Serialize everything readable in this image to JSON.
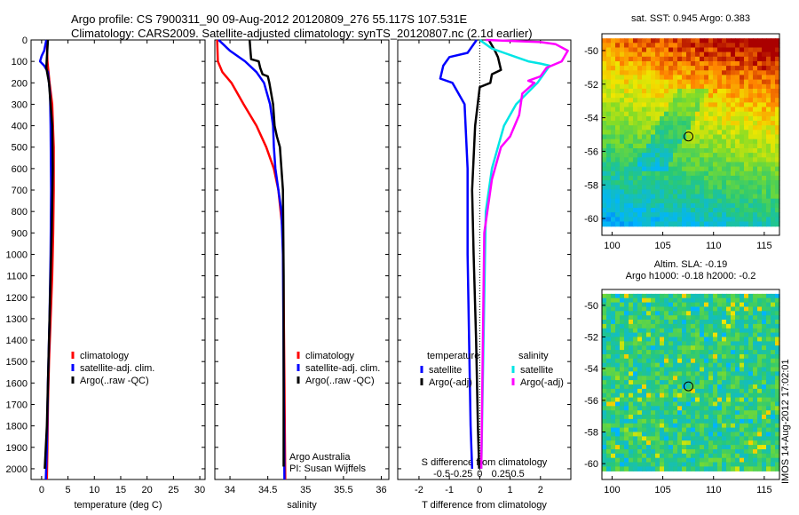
{
  "header": {
    "title_line1": "Argo profile: CS 7900311_90 09-Aug-2012 20120809_276 55.117S 107.531E",
    "title_line2": "Climatology: CARS2009. Satellite-adjusted climatology: synTS_20120807.nc (2.1d earlier)"
  },
  "colors": {
    "climatology": "#ff0000",
    "satellite": "#0000ff",
    "argo": "#000000",
    "sal_satellite": "#00e5e5",
    "sal_argo": "#ff00ff"
  },
  "chart_data": [
    {
      "type": "line",
      "id": "temperature",
      "xlabel": "temperature (deg C)",
      "xlim": [
        -2,
        31
      ],
      "ylim": [
        2050,
        0
      ],
      "xticks": [
        0,
        5,
        10,
        15,
        20,
        25,
        30
      ],
      "yticks": [
        0,
        100,
        200,
        300,
        400,
        500,
        600,
        700,
        800,
        900,
        1000,
        1100,
        1200,
        1300,
        1400,
        1500,
        1600,
        1700,
        1800,
        1900,
        2000
      ],
      "legend": [
        "climatology",
        "satellite-adj. clim.",
        "Argo(..raw -QC)"
      ],
      "series": [
        {
          "name": "climatology",
          "color": "#ff0000",
          "x": [
            1.0,
            1.1,
            1.5,
            2.0,
            2.3,
            2.3,
            2.2,
            2.0,
            1.7,
            1.4,
            1.2,
            1.1,
            1.0
          ],
          "y": [
            0,
            100,
            200,
            300,
            500,
            700,
            900,
            1100,
            1300,
            1500,
            1700,
            1900,
            2050
          ]
        },
        {
          "name": "satellite-adj. clim.",
          "color": "#0000ff",
          "x": [
            0.9,
            0.5,
            0.0,
            -0.3,
            0.5,
            1.2,
            1.6,
            1.7,
            1.8,
            1.7,
            1.5,
            1.2,
            1.0,
            0.8
          ],
          "y": [
            0,
            50,
            75,
            100,
            120,
            150,
            250,
            400,
            700,
            1000,
            1300,
            1600,
            1900,
            2050
          ]
        },
        {
          "name": "Argo(..raw -QC)",
          "color": "#000000",
          "x": [
            1.2,
            1.0,
            0.9,
            1.4,
            2.0,
            2.1,
            1.9,
            1.6,
            1.3,
            1.0,
            0.7,
            0.6
          ],
          "y": [
            0,
            80,
            130,
            200,
            400,
            600,
            900,
            1200,
            1500,
            1800,
            1950,
            2000
          ]
        }
      ]
    },
    {
      "type": "line",
      "id": "salinity",
      "xlabel": "salinity",
      "xlim": [
        33.8,
        36.1
      ],
      "ylim": [
        2050,
        0
      ],
      "xticks": [
        34,
        34.5,
        35,
        35.5,
        36
      ],
      "legend": [
        "climatology",
        "satellite-adj. clim.",
        "Argo(..raw -QC)"
      ],
      "annotation": [
        "Argo Australia",
        "PI: Susan Wijffels"
      ],
      "series": [
        {
          "name": "climatology",
          "color": "#ff0000",
          "x": [
            33.83,
            33.84,
            33.9,
            34.02,
            34.18,
            34.35,
            34.48,
            34.58,
            34.64,
            34.67,
            34.7,
            34.71,
            34.72,
            34.73
          ],
          "y": [
            0,
            100,
            150,
            200,
            300,
            400,
            500,
            600,
            700,
            800,
            900,
            1200,
            1600,
            2050
          ]
        },
        {
          "name": "satellite-adj. clim.",
          "color": "#0000ff",
          "x": [
            33.85,
            34.0,
            34.2,
            34.35,
            34.45,
            34.53,
            34.57,
            34.58,
            34.6,
            34.64,
            34.68,
            34.7,
            34.71,
            34.72
          ],
          "y": [
            0,
            50,
            100,
            150,
            200,
            300,
            400,
            500,
            600,
            700,
            800,
            1000,
            1500,
            2050
          ]
        },
        {
          "name": "Argo(..raw -QC)",
          "color": "#000000",
          "x": [
            34.26,
            34.27,
            34.28,
            34.38,
            34.4,
            34.43,
            34.5,
            34.52,
            34.57,
            34.59,
            34.62,
            34.66,
            34.7,
            34.71,
            34.71
          ],
          "y": [
            0,
            50,
            90,
            100,
            130,
            160,
            170,
            200,
            300,
            400,
            450,
            500,
            700,
            1100,
            1990
          ]
        }
      ]
    },
    {
      "type": "line",
      "id": "difference",
      "xlabel": "T difference from climatology",
      "xlabel_top": "S difference from climatology",
      "xlim": [
        -2.7,
        3.0
      ],
      "ylim": [
        2050,
        0
      ],
      "xticks": [
        -2,
        -1,
        0,
        1,
        2
      ],
      "xticks_top": [
        "-0.5",
        "-0.25",
        "0",
        "0.25",
        "0.5"
      ],
      "legend_titles": [
        "temperature",
        "salinity"
      ],
      "legend": [
        "satellite",
        "Argo(-adj)",
        "satellite",
        "Argo(-adj)"
      ],
      "series": [
        {
          "name": "satellite",
          "group": "temperature",
          "color": "#0000ff",
          "x": [
            -0.1,
            -0.4,
            -1.0,
            -1.2,
            -1.3,
            -0.9,
            -0.5,
            -0.4,
            -0.4,
            -0.35,
            -0.3,
            -0.25
          ],
          "y": [
            0,
            60,
            80,
            120,
            180,
            200,
            300,
            600,
            1000,
            1400,
            1800,
            2000
          ]
        },
        {
          "name": "Argo(-adj)",
          "group": "temperature",
          "color": "#000000",
          "x": [
            0.3,
            0.5,
            0.6,
            0.7,
            0.4,
            0.35,
            0.0,
            -0.15,
            -0.25,
            -0.2,
            -0.12,
            -0.06,
            -0.02
          ],
          "y": [
            0,
            50,
            80,
            140,
            160,
            200,
            220,
            400,
            700,
            1000,
            1400,
            1800,
            2000
          ]
        },
        {
          "name": "satellite",
          "group": "salinity",
          "color": "#00e5e5",
          "x": [
            0.0,
            0.4,
            0.8,
            1.2,
            1.6,
            2.0,
            2.3,
            1.9,
            1.2,
            0.8,
            0.6,
            0.4,
            0.2,
            0.05
          ],
          "y": [
            0,
            40,
            60,
            80,
            100,
            110,
            120,
            200,
            300,
            400,
            500,
            600,
            800,
            2000
          ]
        },
        {
          "name": "Argo(-adj)",
          "group": "salinity",
          "color": "#ff00ff",
          "x": [
            0.2,
            2.0,
            2.5,
            2.9,
            2.7,
            2.2,
            2.0,
            1.6,
            1.8,
            1.4,
            1.3,
            1.0,
            0.7,
            0.4,
            0.15,
            0.05
          ],
          "y": [
            0,
            10,
            20,
            50,
            100,
            130,
            170,
            190,
            200,
            250,
            350,
            450,
            500,
            650,
            900,
            2000
          ]
        }
      ]
    },
    {
      "type": "heatmap",
      "id": "sst_map",
      "title": "sat. SST: 0.945 Argo: 0.383",
      "xlim": [
        99,
        116.5
      ],
      "ylim": [
        -61,
        -49
      ],
      "xticks": [
        100,
        105,
        110,
        115
      ],
      "yticks": [
        -50,
        -52,
        -54,
        -56,
        -58,
        -60
      ],
      "marker": {
        "lon": 107.531,
        "lat": -55.117
      }
    },
    {
      "type": "heatmap",
      "id": "sla_map",
      "title": "Altim. SLA: -0.19",
      "subtitle": "Argo h1000: -0.18 h2000: -0.2",
      "xlim": [
        99,
        116.5
      ],
      "ylim": [
        -61,
        -49
      ],
      "xticks": [
        100,
        105,
        110,
        115
      ],
      "yticks": [
        -50,
        -52,
        -54,
        -56,
        -58,
        -60
      ],
      "marker": {
        "lon": 107.531,
        "lat": -55.117
      }
    }
  ],
  "footer": {
    "side_stamp": "IMOS 14-Aug-2012 17:02:01"
  }
}
